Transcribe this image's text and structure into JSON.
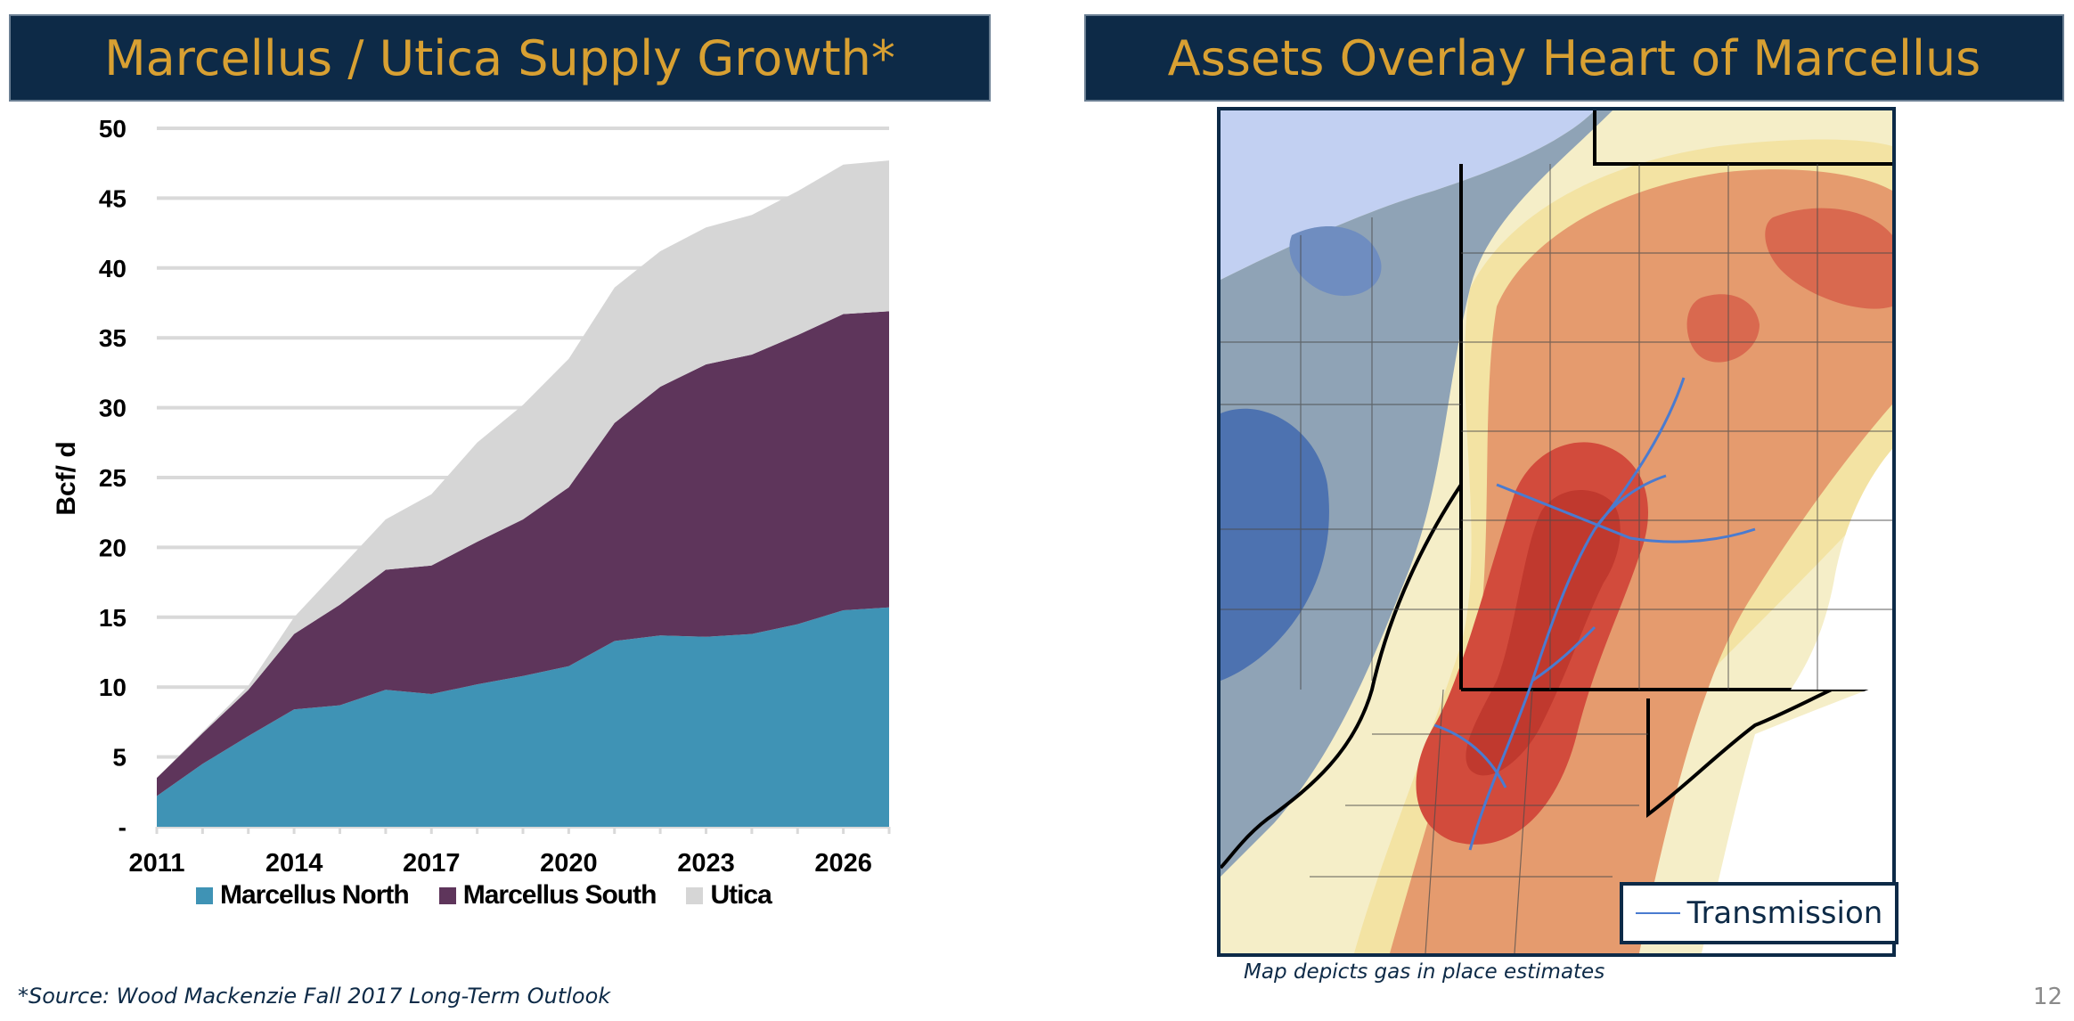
{
  "left_panel": {
    "banner_title": "Marcellus / Utica Supply Growth*",
    "source_note": "*Source: Wood Mackenzie Fall 2017 Long-Term Outlook"
  },
  "right_panel": {
    "banner_title": "Assets Overlay Heart of Marcellus",
    "map_legend_label": "Transmission",
    "map_caption": "Map depicts gas in place estimates",
    "page_number": "12"
  },
  "colors": {
    "banner_bg": "#0d2a47",
    "banner_text": "#d8a032",
    "marcellus_north": "#3f93b5",
    "marcellus_south": "#5e355b",
    "utica": "#d6d6d6",
    "transmission": "#4a7bd0"
  },
  "chart_data": {
    "type": "area",
    "stacked": true,
    "x": [
      2011,
      2012,
      2013,
      2014,
      2015,
      2016,
      2017,
      2018,
      2019,
      2020,
      2021,
      2022,
      2023,
      2024,
      2025,
      2026,
      2027
    ],
    "x_tick_labels": [
      "2011",
      "2014",
      "2017",
      "2020",
      "2023",
      "2026"
    ],
    "y_tick_labels": [
      "-",
      "5",
      "10",
      "15",
      "20",
      "25",
      "30",
      "35",
      "40",
      "45",
      "50"
    ],
    "ylabel": "Bcf/ d",
    "xlabel": "",
    "ylim": [
      0,
      50
    ],
    "grid": true,
    "legend_position": "bottom",
    "series": [
      {
        "name": "Marcellus North",
        "color": "#3f93b5",
        "values": [
          2.2,
          4.5,
          6.5,
          8.4,
          8.7,
          9.8,
          9.5,
          10.2,
          10.8,
          11.5,
          13.3,
          13.7,
          13.6,
          13.8,
          14.5,
          15.5,
          15.7
        ]
      },
      {
        "name": "Marcellus South",
        "color": "#5e355b",
        "values": [
          1.3,
          2.2,
          3.3,
          5.4,
          7.2,
          8.6,
          9.2,
          10.2,
          11.2,
          12.8,
          15.6,
          17.8,
          19.5,
          20.0,
          20.7,
          21.2,
          21.2
        ]
      },
      {
        "name": "Utica",
        "color": "#d6d6d6",
        "values": [
          0.0,
          0.1,
          0.3,
          1.2,
          2.6,
          3.6,
          5.1,
          7.1,
          8.2,
          9.2,
          9.7,
          9.7,
          9.8,
          10.0,
          10.3,
          10.7,
          10.8
        ]
      }
    ]
  }
}
